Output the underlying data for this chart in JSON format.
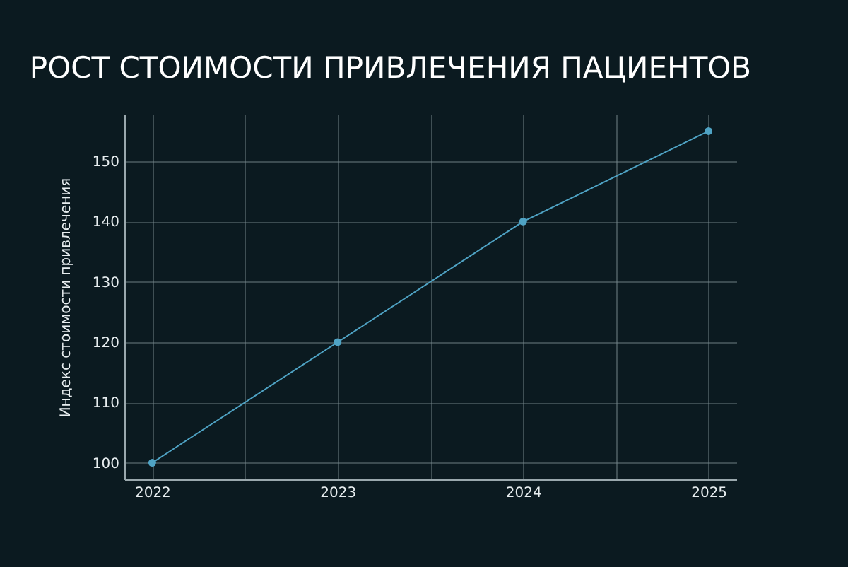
{
  "chart_data": {
    "type": "line",
    "title": "РОСТ СТОИМОСТИ ПРИВЛЕЧЕНИЯ ПАЦИЕНТОВ",
    "ylabel": "Индекс стоимости привлечения",
    "x": [
      2022,
      2023,
      2024,
      2025
    ],
    "series": [
      {
        "color": "#4fa3c4",
        "values": [
          100,
          120,
          140,
          155
        ]
      }
    ],
    "xlim": [
      2021.85,
      2025.15
    ],
    "ylim": [
      97.25,
      157.75
    ],
    "xticks": [
      2022,
      {
        "value": 2022.5,
        "label": null
      },
      2023,
      {
        "value": 2023.5,
        "label": null
      },
      2024,
      {
        "value": 2024.5,
        "label": null
      },
      2025
    ],
    "yticks": [
      100,
      110,
      120,
      130,
      140,
      150
    ],
    "grid": true,
    "marker": "circle",
    "line_style": "solid"
  }
}
